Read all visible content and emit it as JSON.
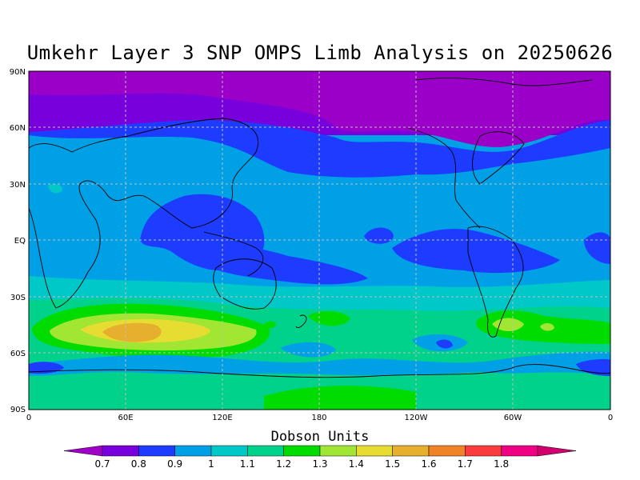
{
  "title": "Umkehr Layer 3 SNP OMPS Limb Analysis on 20250626",
  "lat_ticks": [
    "90N",
    "60N",
    "30N",
    "EQ",
    "30S",
    "60S",
    "90S"
  ],
  "lon_ticks": [
    "0",
    "60E",
    "120E",
    "180",
    "120W",
    "60W",
    "0"
  ],
  "colorbar": {
    "title": "Dobson Units",
    "labels": [
      "0.7",
      "0.8",
      "0.9",
      "1",
      "1.1",
      "1.2",
      "1.3",
      "1.4",
      "1.5",
      "1.6",
      "1.7",
      "1.8"
    ],
    "colors": [
      "#a000c8",
      "#7800dc",
      "#1e3cff",
      "#00a0e6",
      "#00c8c8",
      "#00d28c",
      "#00dc00",
      "#a0e632",
      "#e6dc32",
      "#e6af2d",
      "#f08228",
      "#fa3c3c",
      "#f00082",
      "#d2006e"
    ]
  },
  "colors": {
    "band_polar_north": "#9a00c8",
    "band_high_north": "#7800dc",
    "band_mid": "#1e3cff",
    "band_tropics": "#00a0e6",
    "band_south": "#00c8c8",
    "band_south_mid": "#00d28c",
    "band_green": "#00dc00",
    "band_lime": "#a0e632",
    "band_yellow": "#e6dc32",
    "band_orange": "#e6af2d"
  }
}
